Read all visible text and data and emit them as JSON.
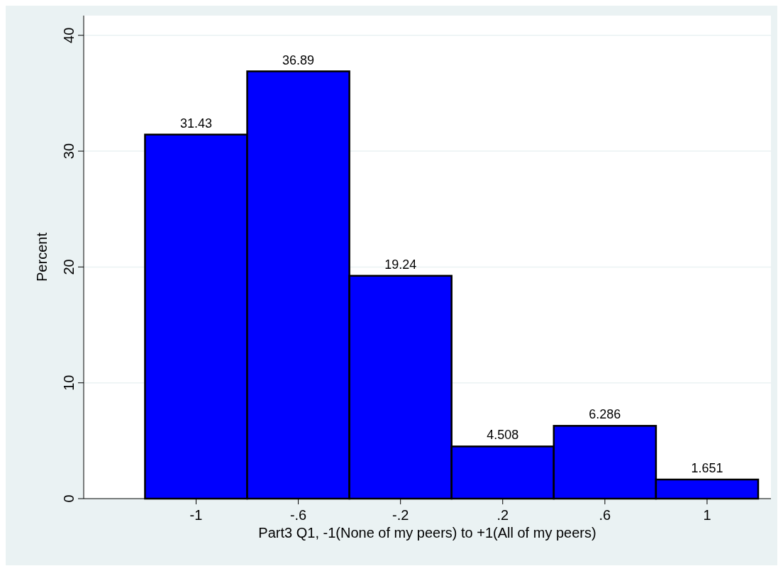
{
  "chart_data": {
    "type": "histogram",
    "xlabel": "Part3 Q1, -1(None of my peers) to +1(All of my peers)",
    "ylabel": "Percent",
    "bins": [
      -1.2,
      -0.8,
      -0.4,
      0,
      0.4,
      0.8,
      1.2
    ],
    "values": [
      31.43,
      36.89,
      19.24,
      4.508,
      6.286,
      1.651
    ],
    "color": "#0000ff",
    "data_labels": true,
    "grid": "y",
    "xlim": [
      -1.44,
      1.25
    ],
    "ylim": [
      0,
      41.7
    ],
    "xticks": [
      -1,
      {
        "value": -0.6,
        "label": "-.6"
      },
      {
        "value": -0.2,
        "label": "-.2"
      },
      {
        "value": 0.2,
        "label": ".2"
      },
      {
        "value": 0.6,
        "label": ".6"
      },
      1
    ],
    "yticks": [
      0,
      10,
      20,
      30,
      40
    ]
  }
}
